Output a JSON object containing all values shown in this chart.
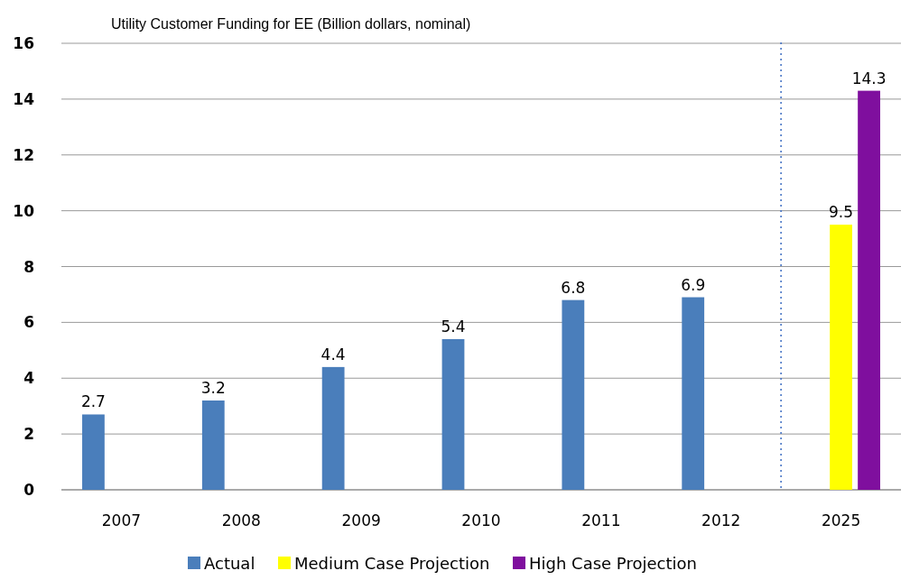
{
  "chart_data": {
    "type": "bar",
    "title": "Utility Customer Funding for EE (Billion dollars, nominal)",
    "categories": [
      "2007",
      "2008",
      "2009",
      "2010",
      "2011",
      "2012",
      "2025"
    ],
    "series": [
      {
        "name": "Actual",
        "color": "#4a7ebb",
        "values": [
          2.7,
          3.2,
          4.4,
          5.4,
          6.8,
          6.9,
          null
        ]
      },
      {
        "name": "Medium Case Projection",
        "color": "#ffff00",
        "values": [
          null,
          null,
          null,
          null,
          null,
          null,
          9.5
        ]
      },
      {
        "name": "High Case Projection",
        "color": "#7f0f9e",
        "values": [
          null,
          null,
          null,
          null,
          null,
          null,
          14.3
        ]
      }
    ],
    "ylim": [
      0,
      16
    ],
    "yticks": [
      0,
      2,
      4,
      6,
      8,
      10,
      12,
      14,
      16
    ],
    "grid": "y",
    "legend": "bottom",
    "data_labels": true
  }
}
